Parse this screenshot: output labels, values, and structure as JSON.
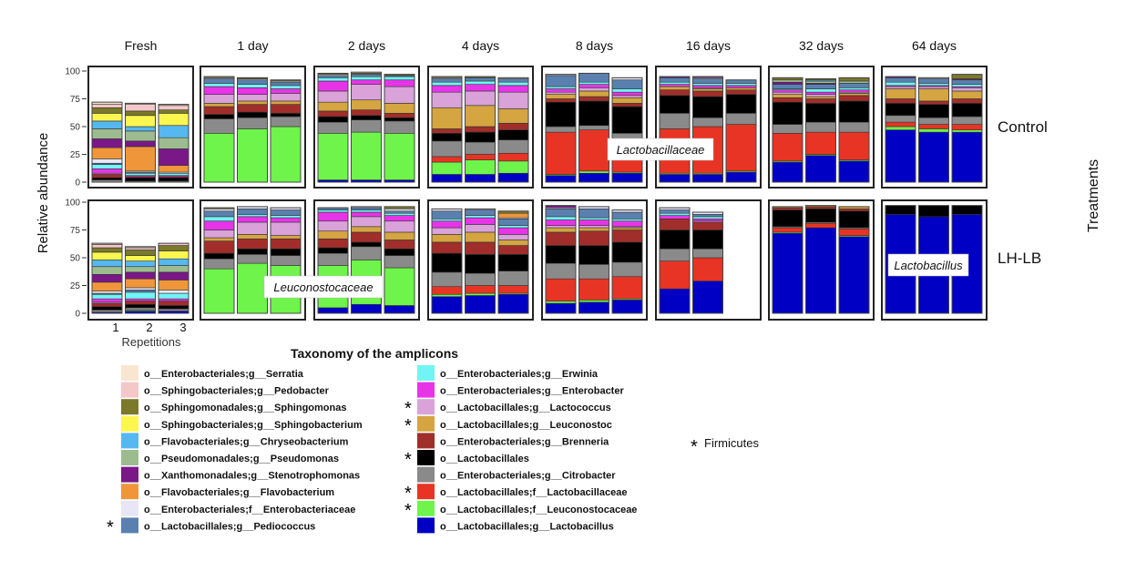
{
  "chart_data": {
    "type": "bar",
    "stacked": true,
    "ylabel": "Relative abundance",
    "xlabel": "Repetitions",
    "ylim": [
      0,
      100
    ],
    "yticks": [
      "0",
      "25",
      "50",
      "75",
      "100"
    ],
    "xticks": [
      "1",
      "2",
      "3"
    ],
    "facet_row_title": "Treatments",
    "columns": [
      "Fresh",
      "1 day",
      "2 days",
      "4 days",
      "8 days",
      "16 days",
      "32 days",
      "64 days"
    ],
    "rows": [
      "Control",
      "LH-LB"
    ],
    "legend_title": "Taxonomy of the amplicons",
    "legend_note": "Firmicutes",
    "taxa_order_note": "values arrays follow taxa order below (bottom to top of each stack)",
    "taxa": [
      {
        "name": "o__Lactobacillales;g__Lactobacillus",
        "color": "#0000c4",
        "star": false
      },
      {
        "name": "o__Lactobacillales;f__Leuconostocaceae",
        "color": "#6ef44a",
        "star": true
      },
      {
        "name": "o__Lactobacillales;f__Lactobacillaceae",
        "color": "#e83424",
        "star": true
      },
      {
        "name": "o__Enterobacteriales;g__Citrobacter",
        "color": "#8a8a8a",
        "star": false
      },
      {
        "name": "o__Lactobacillales",
        "color": "#000000",
        "star": true
      },
      {
        "name": "o__Enterobacteriales;g__Brenneria",
        "color": "#a12e2a",
        "star": false
      },
      {
        "name": "o__Lactobacillales;g__Leuconostoc",
        "color": "#d4a540",
        "star": true
      },
      {
        "name": "o__Lactobacillales;g__Lactococcus",
        "color": "#d9a2d9",
        "star": true
      },
      {
        "name": "o__Enterobacteriales;g__Enterobacter",
        "color": "#e834e8",
        "star": false
      },
      {
        "name": "o__Enterobacteriales;g__Erwinia",
        "color": "#70f4f4",
        "star": false
      },
      {
        "name": "o__Lactobacillales;g__Pediococcus",
        "color": "#5a80b0",
        "star": true
      },
      {
        "name": "o__Enterobacteriales;f__Enterobacteriaceae",
        "color": "#e8e6f6",
        "star": false
      },
      {
        "name": "o__Flavobacteriales;g__Flavobacterium",
        "color": "#f0963a",
        "star": false
      },
      {
        "name": "o__Xanthomonadales;g__Stenotrophomonas",
        "color": "#7a1888",
        "star": false
      },
      {
        "name": "o__Pseudomonadales;g__Pseudomonas",
        "color": "#9cbc90",
        "star": false
      },
      {
        "name": "o__Flavobacteriales;g__Chryseobacterium",
        "color": "#56b8f0",
        "star": false
      },
      {
        "name": "o__Sphingobacteriales;g__Sphingobacterium",
        "color": "#fcf650",
        "star": false
      },
      {
        "name": "o__Sphingomonadales;g__Sphingomonas",
        "color": "#7a7a2a",
        "star": false
      },
      {
        "name": "o__Sphingobacteriales;g__Pedobacter",
        "color": "#f4c8c8",
        "star": false
      },
      {
        "name": "o__Enterobacteriales;g__Serratia",
        "color": "#f8e6d0",
        "star": false
      }
    ],
    "legend_left": [
      19,
      18,
      17,
      16,
      15,
      14,
      13,
      12,
      11,
      10
    ],
    "legend_right": [
      9,
      8,
      7,
      6,
      5,
      4,
      3,
      2,
      1,
      0
    ],
    "panels": {
      "Control": [
        [
          [
            0,
            0,
            0,
            2,
            2,
            3,
            0,
            1,
            4,
            4,
            1,
            4,
            10,
            8,
            9,
            7,
            7,
            5,
            3,
            2
          ],
          [
            0,
            0,
            0,
            1,
            3,
            1,
            0,
            0,
            1,
            2,
            1,
            1,
            22,
            5,
            9,
            4,
            10,
            4,
            6,
            1
          ],
          [
            0,
            0,
            0,
            1,
            3,
            1,
            0,
            0,
            1,
            2,
            0,
            1,
            6,
            15,
            10,
            11,
            11,
            3,
            4,
            1
          ]
        ],
        [
          [
            0,
            44,
            0,
            13,
            4,
            7,
            3,
            8,
            7,
            3,
            4,
            1,
            0,
            0,
            0,
            0,
            0,
            1,
            0,
            0
          ],
          [
            0,
            48,
            0,
            10,
            5,
            7,
            3,
            6,
            6,
            3,
            4,
            1,
            0,
            0,
            0,
            0,
            0,
            1,
            0,
            0
          ],
          [
            0,
            50,
            0,
            9,
            3,
            8,
            3,
            7,
            4,
            3,
            3,
            1,
            0,
            0,
            0,
            0,
            0,
            1,
            0,
            0
          ]
        ],
        [
          [
            2,
            42,
            0,
            10,
            5,
            5,
            8,
            10,
            9,
            3,
            2,
            1,
            0,
            0,
            0,
            0,
            0,
            1,
            0,
            0
          ],
          [
            2,
            43,
            0,
            11,
            4,
            5,
            9,
            14,
            4,
            3,
            2,
            0,
            0,
            0,
            0,
            0,
            0,
            1,
            0,
            1
          ],
          [
            2,
            42,
            0,
            11,
            3,
            4,
            9,
            15,
            6,
            3,
            1,
            0,
            0,
            0,
            0,
            0,
            0,
            1,
            0,
            0
          ]
        ],
        [
          [
            7,
            11,
            5,
            14,
            7,
            4,
            19,
            14,
            6,
            3,
            3,
            1,
            0,
            0,
            0,
            0,
            0,
            1,
            0,
            0
          ],
          [
            7,
            13,
            5,
            11,
            9,
            5,
            19,
            13,
            6,
            3,
            3,
            0,
            0,
            0,
            0,
            0,
            0,
            1,
            0,
            0
          ],
          [
            8,
            11,
            7,
            12,
            9,
            6,
            13,
            15,
            6,
            3,
            3,
            1,
            0,
            0,
            0,
            0,
            0,
            0,
            0,
            0
          ]
        ],
        [
          [
            6,
            1,
            38,
            5,
            22,
            3,
            4,
            2,
            3,
            2,
            10,
            1,
            0,
            0,
            0,
            0,
            0,
            0,
            0,
            0
          ],
          [
            8,
            2,
            37,
            4,
            22,
            4,
            5,
            3,
            3,
            2,
            8,
            0,
            0,
            0,
            0,
            0,
            0,
            0,
            0,
            0
          ],
          [
            8,
            1,
            30,
            5,
            24,
            3,
            5,
            2,
            3,
            3,
            8,
            2,
            0,
            0,
            0,
            0,
            0,
            0,
            0,
            0
          ]
        ],
        [
          [
            7,
            1,
            40,
            14,
            16,
            5,
            3,
            0,
            2,
            2,
            4,
            0,
            0,
            1,
            0,
            0,
            0,
            0,
            0,
            0
          ],
          [
            7,
            1,
            42,
            8,
            19,
            5,
            2,
            1,
            2,
            2,
            4,
            1,
            0,
            1,
            0,
            0,
            0,
            0,
            0,
            0
          ],
          [
            9,
            1,
            42,
            10,
            17,
            4,
            2,
            0,
            2,
            2,
            3,
            0,
            0,
            0,
            0,
            0,
            0,
            0,
            0,
            0
          ]
        ],
        [
          [
            18,
            1,
            25,
            8,
            20,
            4,
            3,
            2,
            2,
            1,
            4,
            0,
            0,
            2,
            2,
            0,
            0,
            2,
            0,
            0
          ],
          [
            24,
            1,
            20,
            9,
            17,
            4,
            2,
            2,
            2,
            3,
            4,
            0,
            0,
            1,
            2,
            1,
            0,
            1,
            0,
            0
          ],
          [
            19,
            1,
            25,
            9,
            19,
            5,
            2,
            1,
            2,
            2,
            4,
            0,
            0,
            0,
            2,
            0,
            0,
            3,
            0,
            0
          ]
        ],
        [
          [
            47,
            3,
            4,
            6,
            11,
            4,
            9,
            2,
            1,
            3,
            4,
            0,
            0,
            1,
            0,
            0,
            0,
            0,
            0,
            0
          ],
          [
            45,
            3,
            4,
            6,
            12,
            3,
            11,
            2,
            1,
            2,
            4,
            1,
            0,
            0,
            0,
            0,
            0,
            0,
            0,
            0
          ],
          [
            45,
            2,
            5,
            7,
            12,
            4,
            7,
            3,
            1,
            2,
            4,
            0,
            0,
            1,
            0,
            0,
            0,
            4,
            0,
            0
          ]
        ]
      ],
      "LH-LB": [
        [
          [
            1,
            0,
            0,
            2,
            3,
            3,
            0,
            1,
            3,
            4,
            1,
            2,
            8,
            7,
            7,
            6,
            7,
            4,
            3,
            1
          ],
          [
            2,
            1,
            0,
            2,
            3,
            3,
            0,
            0,
            2,
            6,
            2,
            2,
            8,
            6,
            5,
            5,
            5,
            5,
            2,
            1
          ],
          [
            2,
            0,
            0,
            2,
            3,
            4,
            0,
            0,
            2,
            5,
            0,
            3,
            9,
            7,
            6,
            6,
            7,
            5,
            2,
            0
          ]
        ],
        [
          [
            0,
            40,
            0,
            9,
            5,
            11,
            3,
            7,
            8,
            4,
            5,
            2,
            0,
            0,
            0,
            0,
            0,
            1,
            0,
            0
          ],
          [
            0,
            45,
            0,
            8,
            5,
            9,
            4,
            11,
            5,
            2,
            5,
            2,
            0,
            0,
            0,
            0,
            0,
            0,
            0,
            0
          ],
          [
            0,
            43,
            0,
            9,
            6,
            9,
            3,
            12,
            4,
            2,
            5,
            2,
            0,
            0,
            0,
            0,
            0,
            0,
            0,
            0
          ]
        ],
        [
          [
            5,
            38,
            0,
            11,
            5,
            8,
            7,
            9,
            8,
            2,
            2,
            0,
            0,
            0,
            0,
            0,
            0,
            0,
            0,
            0
          ],
          [
            8,
            40,
            0,
            12,
            4,
            9,
            5,
            9,
            4,
            2,
            2,
            1,
            0,
            0,
            0,
            0,
            0,
            0,
            0,
            0
          ],
          [
            7,
            34,
            0,
            11,
            6,
            8,
            7,
            10,
            5,
            2,
            2,
            2,
            0,
            0,
            0,
            0,
            0,
            2,
            0,
            0
          ]
        ],
        [
          [
            15,
            2,
            7,
            13,
            17,
            10,
            7,
            6,
            6,
            2,
            7,
            2,
            0,
            0,
            0,
            0,
            0,
            0,
            0,
            0
          ],
          [
            16,
            2,
            7,
            11,
            17,
            11,
            9,
            7,
            6,
            2,
            5,
            1,
            0,
            0,
            0,
            0,
            0,
            0,
            0,
            0
          ],
          [
            17,
            1,
            7,
            13,
            15,
            8,
            5,
            5,
            6,
            2,
            6,
            1,
            4,
            0,
            0,
            0,
            0,
            2,
            0,
            0
          ]
        ],
        [
          [
            9,
            2,
            20,
            14,
            16,
            12,
            4,
            2,
            5,
            3,
            7,
            1,
            0,
            2,
            0,
            0,
            0,
            0,
            0,
            0
          ],
          [
            10,
            2,
            19,
            13,
            17,
            13,
            3,
            2,
            5,
            2,
            8,
            2,
            0,
            0,
            0,
            0,
            0,
            0,
            0,
            0
          ],
          [
            12,
            1,
            20,
            13,
            18,
            11,
            2,
            1,
            5,
            2,
            6,
            2,
            0,
            0,
            0,
            0,
            0,
            0,
            0,
            0
          ]
        ],
        [
          [
            22,
            0,
            25,
            11,
            17,
            10,
            0,
            0,
            3,
            2,
            3,
            2,
            0,
            0,
            0,
            0,
            0,
            0,
            0,
            0
          ],
          [
            29,
            0,
            21,
            8,
            17,
            7,
            0,
            1,
            2,
            2,
            2,
            2,
            0,
            0,
            0,
            0,
            0,
            0,
            0,
            0
          ]
        ],
        [
          [
            72,
            1,
            4,
            1,
            15,
            2,
            1,
            0,
            0,
            0,
            0,
            0,
            0,
            0,
            0,
            0,
            0,
            0,
            0,
            0
          ],
          [
            77,
            0,
            4,
            1,
            12,
            2,
            1,
            0,
            0,
            0,
            0,
            0,
            0,
            0,
            0,
            0,
            0,
            0,
            0,
            0
          ],
          [
            69,
            1,
            6,
            1,
            15,
            2,
            2,
            0,
            0,
            0,
            0,
            0,
            0,
            0,
            0,
            0,
            0,
            0,
            0,
            0
          ]
        ],
        [
          [
            89,
            0,
            0,
            0,
            8,
            0,
            0,
            0,
            0,
            0,
            0,
            0,
            0,
            0,
            0,
            0,
            0,
            0,
            0,
            0
          ],
          [
            87,
            0,
            0,
            0,
            10,
            0,
            0,
            0,
            0,
            0,
            0,
            0,
            0,
            0,
            0,
            0,
            0,
            0,
            0,
            0
          ],
          [
            89,
            0,
            0,
            0,
            8,
            0,
            0,
            0,
            0,
            0,
            0,
            0,
            0,
            0,
            0,
            0,
            0,
            0,
            0,
            0
          ]
        ]
      ]
    },
    "annotations": [
      "Lactobacillaceae",
      "Leuconostocaceae",
      "Lactobacillus"
    ]
  }
}
